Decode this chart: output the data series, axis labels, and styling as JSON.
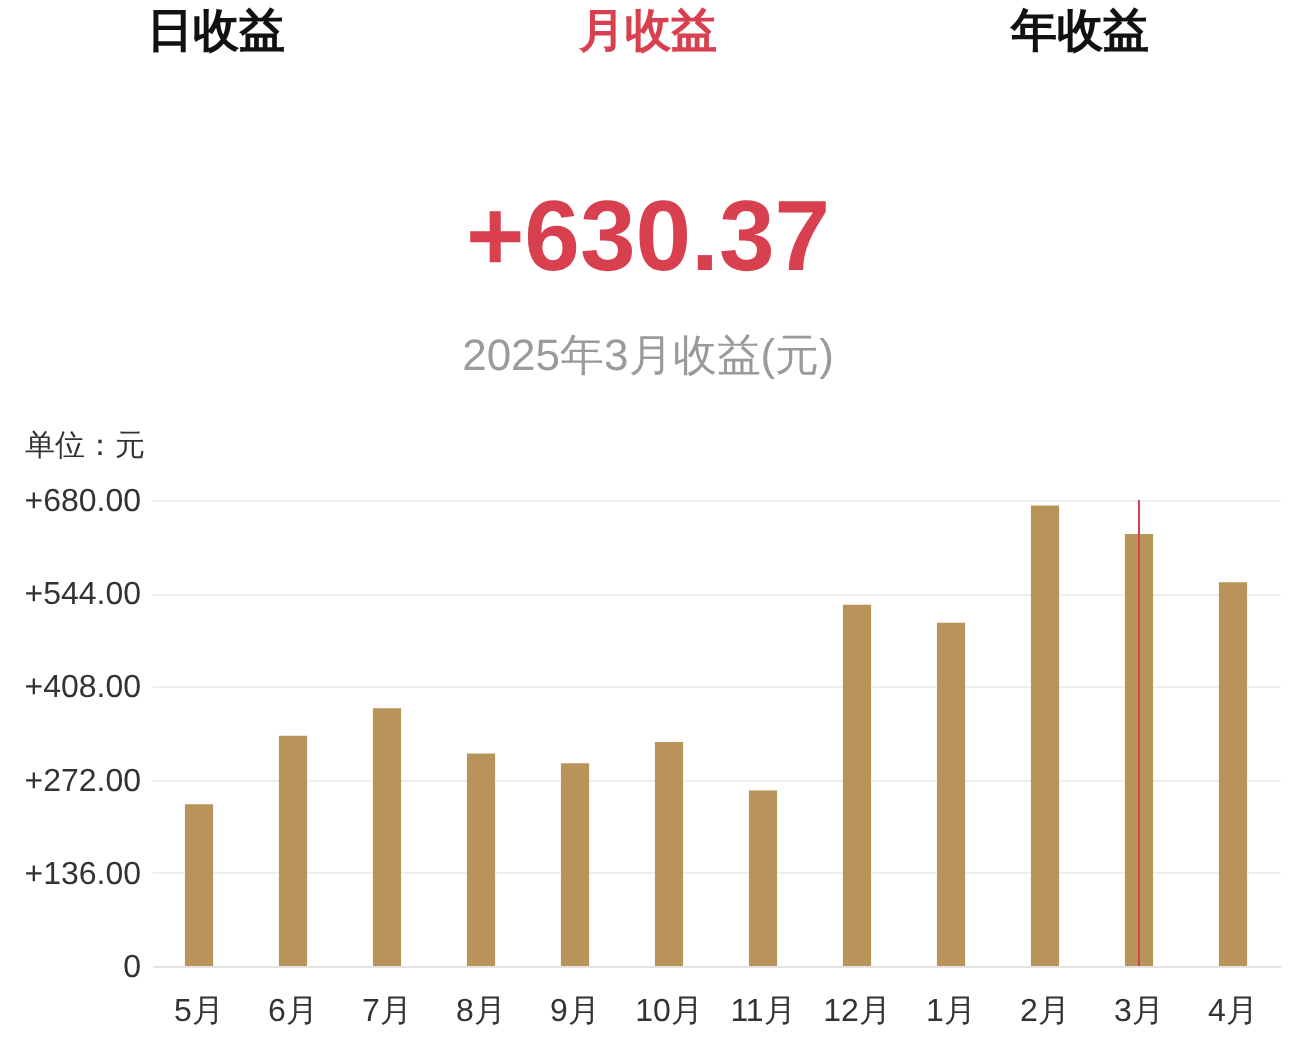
{
  "chart_data": {
    "type": "bar",
    "title": "+630.37",
    "subtitle": "2025年3月收益(元)",
    "ylabel": "单位：元",
    "annotations": [
      "日收益",
      "月收益",
      "年收益"
    ],
    "categories": [
      "5月",
      "6月",
      "7月",
      "8月",
      "9月",
      "10月",
      "11月",
      "12月",
      "1月",
      "2月",
      "3月",
      "4月"
    ],
    "values": [
      236,
      336,
      376,
      310,
      296,
      327,
      256,
      527,
      501,
      672,
      630.37,
      560
    ],
    "color": "#b8935a",
    "ylim": [
      0,
      680
    ],
    "yticks": [
      0,
      {
        "value": 136,
        "label": "+136.00"
      },
      {
        "value": 272,
        "label": "+272.00"
      },
      {
        "value": 408,
        "label": "+408.00"
      },
      {
        "value": 544,
        "label": "+544.00"
      },
      {
        "value": 680,
        "label": "+680.00"
      }
    ],
    "grid": "y",
    "ref_lines": [
      {
        "axis": "x",
        "value": "3月",
        "color": "#d9404f"
      }
    ]
  }
}
